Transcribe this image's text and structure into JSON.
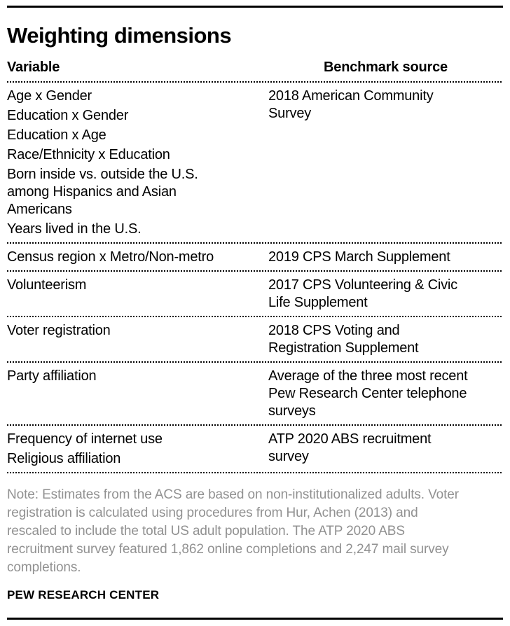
{
  "chart_data": {
    "type": "table",
    "title": "Weighting dimensions",
    "columns": [
      "Variable",
      "Benchmark source"
    ],
    "rows": [
      {
        "variables": [
          [
            "Age x Gender"
          ],
          [
            "Education x Gender"
          ],
          [
            "Education x Age"
          ],
          [
            "Race/Ethnicity x Education"
          ],
          [
            "Born inside vs. outside the U.S.",
            "among Hispanics and Asian",
            "Americans"
          ],
          [
            "Years lived in the U.S."
          ]
        ],
        "benchmark": [
          "2018 American Community",
          "Survey"
        ]
      },
      {
        "variables": [
          [
            "Census region x Metro/Non-metro"
          ]
        ],
        "benchmark": [
          "2019 CPS March Supplement"
        ]
      },
      {
        "variables": [
          [
            "Volunteerism"
          ]
        ],
        "benchmark": [
          "2017 CPS Volunteering & Civic",
          "Life Supplement"
        ]
      },
      {
        "variables": [
          [
            "Voter registration"
          ]
        ],
        "benchmark": [
          "2018 CPS Voting and",
          "Registration Supplement"
        ]
      },
      {
        "variables": [
          [
            "Party affiliation"
          ]
        ],
        "benchmark": [
          "Average of the three most recent",
          "Pew Research Center telephone",
          "surveys"
        ]
      },
      {
        "variables": [
          [
            "Frequency of internet use"
          ],
          [
            "Religious affiliation"
          ]
        ],
        "benchmark": [
          "ATP 2020 ABS recruitment",
          "survey"
        ]
      }
    ],
    "note_lines": [
      "Note: Estimates from the ACS are based on non-institutionalized adults. Voter",
      "registration is calculated using procedures from Hur, Achen (2013) and",
      "rescaled to include the total US adult population. The ATP 2020 ABS",
      "recruitment survey featured 1,862 online completions and 2,247 mail survey",
      "completions."
    ],
    "source": "PEW RESEARCH CENTER",
    "layout": {
      "grid": "off",
      "legend": "none"
    },
    "colors": {
      "text": "#000000",
      "note_text": "#919191",
      "rule": "#000000",
      "background": "#ffffff"
    }
  }
}
